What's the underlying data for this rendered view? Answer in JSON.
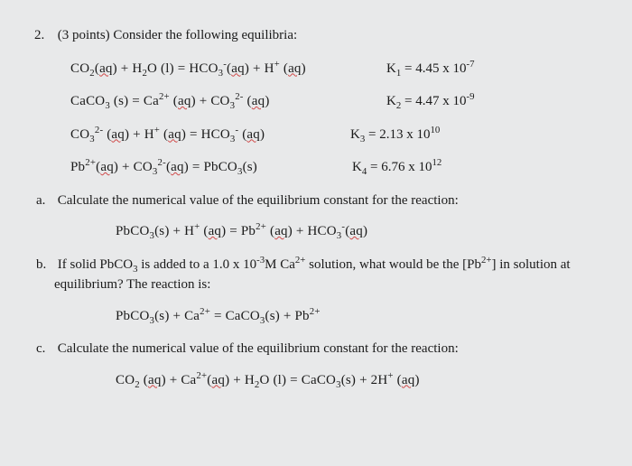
{
  "problem": {
    "number": "2.",
    "points": "(3 points)",
    "intro": "Consider the following equilibria:"
  },
  "equations": {
    "eq1": {
      "lhs_1": "CO",
      "lhs_1_sub": "2",
      "lhs_1_state": "aq",
      "plus1": " + ",
      "lhs_2": "H",
      "lhs_2_sub": "2",
      "lhs_2b": "O (l)",
      "equals": " = ",
      "rhs_1": "HCO",
      "rhs_1_sub": "3",
      "rhs_1_sup": "-",
      "rhs_1_state": "aq",
      "plus2": " + ",
      "rhs_2": "H",
      "rhs_2_sup": "+",
      "rhs_2_state": "aq",
      "k_label": "K",
      "k_sub": "1",
      "k_eq": " = ",
      "k_val": "4.45 x 10",
      "k_exp": "-7"
    },
    "eq2": {
      "lhs_1": "CaCO",
      "lhs_1_sub": "3",
      "lhs_1_state": " (s)",
      "equals": " = ",
      "rhs_1": "Ca",
      "rhs_1_sup": "2+",
      "rhs_1_state": "aq",
      "plus1": " + ",
      "rhs_2": "CO",
      "rhs_2_sub": "3",
      "rhs_2_sup": "2-",
      "rhs_2_state": "aq",
      "k_label": "K",
      "k_sub": "2",
      "k_eq": " = ",
      "k_val": "4.47 x 10",
      "k_exp": "-9"
    },
    "eq3": {
      "lhs_1": "CO",
      "lhs_1_sub": "3",
      "lhs_1_sup": "2-",
      "lhs_1_state": "aq",
      "plus1": " + ",
      "lhs_2": "H",
      "lhs_2_sup": "+",
      "lhs_2_state": "aq",
      "equals": " = ",
      "rhs_1": "HCO",
      "rhs_1_sub": "3",
      "rhs_1_sup": "-",
      "rhs_1_state": "aq",
      "k_label": "K",
      "k_sub": "3",
      "k_eq": " = ",
      "k_val": "2.13 x 10",
      "k_exp": "10"
    },
    "eq4": {
      "lhs_1": "Pb",
      "lhs_1_sup": "2+",
      "lhs_1_state": "aq",
      "plus1": " + ",
      "lhs_2": "CO",
      "lhs_2_sub": "3",
      "lhs_2_sup": "2-",
      "lhs_2_state": "aq",
      "equals": " = ",
      "rhs_1": "PbCO",
      "rhs_1_sub": "3",
      "rhs_1_state": "(s)",
      "k_label": "K",
      "k_sub": "4",
      "k_eq": " = ",
      "k_val": "6.76 x 10",
      "k_exp": "12"
    }
  },
  "parts": {
    "a": {
      "label": "a.",
      "text": "Calculate the numerical value of the equilibrium constant for the reaction:",
      "eq": {
        "t1": "PbCO",
        "s1": "3",
        "t2": "(s) + H",
        "sup2": "+",
        "t3": " (",
        "u3": "aq",
        "t4": ") = Pb",
        "sup4": "2+",
        "t5": " (",
        "u5": "aq",
        "t6": ") + HCO",
        "s6": "3",
        "sup6": "-",
        "t7": "(",
        "u7": "aq",
        "t8": ")"
      }
    },
    "b": {
      "label": "b.",
      "text1": "If solid PbCO",
      "sub1": "3",
      "text2": " is added to a 1.0 x 10",
      "sup2": "-3",
      "text3": "M Ca",
      "sup3": "2+",
      "text4": " solution, what would be the [Pb",
      "sup4": "2+",
      "text5": "] in solution at equilibrium? The reaction is:",
      "eq": {
        "t1": "PbCO",
        "s1": "3",
        "t2": "(s) + Ca",
        "sup2": "2+",
        "t3": " = CaCO",
        "s3": "3",
        "t4": "(s) + Pb",
        "sup4": "2+"
      }
    },
    "c": {
      "label": "c.",
      "text": "Calculate the numerical value of the equilibrium constant for the reaction:",
      "eq": {
        "t1": "CO",
        "s1": "2",
        "t2": " (",
        "u2": "aq",
        "t3": ") + Ca",
        "sup3": "2+",
        "t4": "(",
        "u4": "aq",
        "t5": ") + H",
        "s5": "2",
        "t6": "O (l) = CaCO",
        "s6": "3",
        "t7": "(s) + 2H",
        "sup7": "+",
        "t8": " (",
        "u8": "aq",
        "t9": ")"
      }
    }
  }
}
